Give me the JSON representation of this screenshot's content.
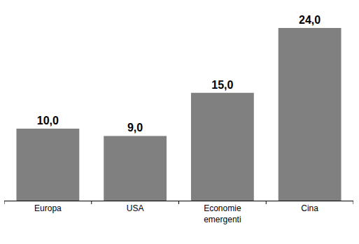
{
  "chart_data": {
    "type": "bar",
    "categories": [
      "Europa",
      "USA",
      "Economie emergenti",
      "Cina"
    ],
    "values": [
      10.0,
      9.0,
      15.0,
      24.0
    ],
    "value_labels": [
      "10,0",
      "9,0",
      "15,0",
      "24,0"
    ],
    "data_labels": true,
    "color": "#808080",
    "ylim": [
      0,
      24
    ],
    "grid": false,
    "tick_labels": "x"
  }
}
